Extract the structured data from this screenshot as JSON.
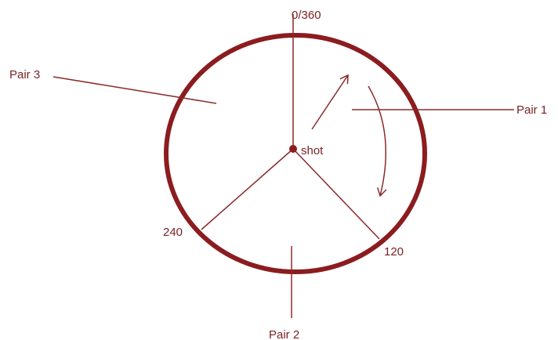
{
  "labels": {
    "top": "0/360",
    "center": "shot",
    "left_angle": "240",
    "right_angle": "120"
  },
  "pairs": [
    {
      "label": "Pair 1"
    },
    {
      "label": "Pair 2"
    },
    {
      "label": "Pair 3"
    }
  ]
}
